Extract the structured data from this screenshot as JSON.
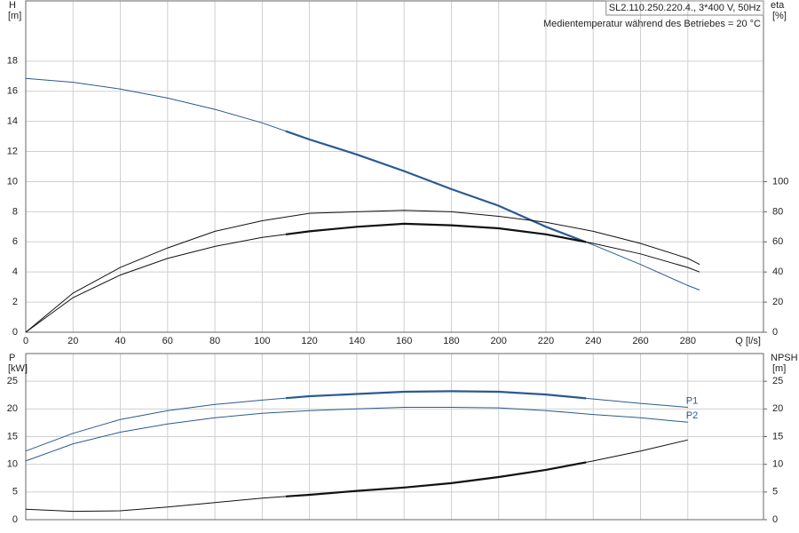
{
  "chart_data": [
    {
      "type": "line",
      "title": "SL2.110.250.220.4., 3*400 V, 50Hz",
      "subtitle": "Medientemperatur während des Betriebes = 20 °C",
      "ylabel": "H",
      "yunit": "[m]",
      "y2label": "eta",
      "y2unit": "[%]",
      "xlabel": "Q [l/s]",
      "xlim": [
        0,
        312
      ],
      "xticks": [
        0,
        20,
        40,
        60,
        80,
        100,
        120,
        140,
        160,
        180,
        200,
        220,
        240,
        260,
        280
      ],
      "show_xtick_labels": true,
      "ylim": [
        0,
        22
      ],
      "yticks": [
        0,
        2,
        4,
        6,
        8,
        10,
        12,
        14,
        16,
        18
      ],
      "y2lim": [
        0,
        220
      ],
      "y2ticks": [
        0,
        20,
        40,
        60,
        80,
        100
      ],
      "grid": true,
      "x": [
        0,
        20,
        40,
        60,
        80,
        100,
        120,
        140,
        160,
        180,
        200,
        220,
        240,
        260,
        280,
        285
      ],
      "series": [
        {
          "color": "#2a5a92",
          "values": [
            16.85,
            16.6,
            16.15,
            15.55,
            14.8,
            13.9,
            12.8,
            11.8,
            10.7,
            9.5,
            8.4,
            7.0,
            5.8,
            4.5,
            3.1,
            2.8
          ],
          "bold_range": [
            110,
            237
          ]
        },
        {
          "color": "#111111",
          "axis": "y2",
          "values": [
            0,
            26,
            43,
            56,
            67,
            74,
            79,
            80,
            81,
            80,
            77,
            73,
            67,
            59,
            49,
            45
          ]
        },
        {
          "color": "#111111",
          "axis": "y2",
          "values": [
            0,
            23,
            38,
            49,
            57,
            63,
            67,
            70,
            72,
            71,
            69,
            65,
            59,
            52,
            43,
            40
          ],
          "bold_range": [
            110,
            237
          ]
        }
      ]
    },
    {
      "type": "line",
      "ylabel": "P",
      "yunit": "[kW]",
      "y2label": "NPSH",
      "y2unit": "[m]",
      "xlim": [
        0,
        312
      ],
      "xticks": [
        0,
        20,
        40,
        60,
        80,
        100,
        120,
        140,
        160,
        180,
        200,
        220,
        240,
        260,
        280
      ],
      "show_xtick_labels": false,
      "ylim": [
        0,
        30
      ],
      "yticks": [
        0,
        5,
        10,
        15,
        20,
        25
      ],
      "y2lim": [
        0,
        30
      ],
      "y2ticks": [
        0,
        5,
        10,
        15,
        20,
        25
      ],
      "grid": true,
      "x": [
        0,
        20,
        40,
        60,
        80,
        100,
        120,
        140,
        160,
        180,
        200,
        220,
        240,
        260,
        280
      ],
      "series": [
        {
          "name": "P1",
          "color": "#2a5a92",
          "values": [
            12.4,
            15.6,
            18.1,
            19.7,
            20.8,
            21.6,
            22.3,
            22.7,
            23.1,
            23.2,
            23.1,
            22.6,
            21.8,
            21.0,
            20.3
          ],
          "bold_range": [
            110,
            237
          ]
        },
        {
          "name": "P2",
          "color": "#2a5a92",
          "values": [
            10.6,
            13.7,
            15.8,
            17.3,
            18.4,
            19.2,
            19.7,
            20.0,
            20.3,
            20.3,
            20.2,
            19.7,
            19.0,
            18.4,
            17.6
          ]
        },
        {
          "color": "#111111",
          "axis": "y2",
          "values": [
            1.9,
            1.5,
            1.6,
            2.3,
            3.1,
            3.9,
            4.5,
            5.2,
            5.8,
            6.6,
            7.7,
            9.0,
            10.6,
            12.4,
            14.4
          ],
          "bold_range": [
            110,
            237
          ]
        }
      ]
    }
  ]
}
